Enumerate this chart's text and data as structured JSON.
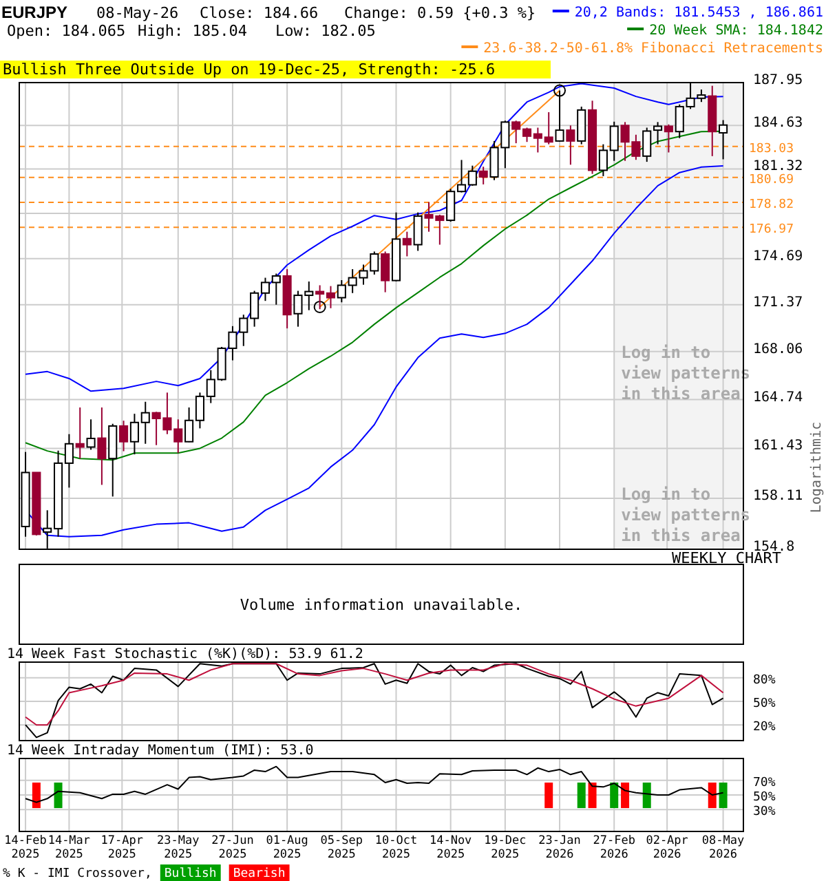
{
  "chart_data": [
    {
      "type": "candlestick",
      "title": "EURJPY",
      "subtitle": "Bullish Three Outside Up on 19-Dec-25, Strength: -25.6",
      "ylabel": "Logarithmic",
      "annotations": [
        "08-May-26",
        "Close: 184.66",
        "Change: 0.59 {+0.3 %}",
        "Open: 184.065",
        "High: 185.04",
        "Low: 182.05",
        "Log in to view patterns in this area",
        "WEEKLY CHART"
      ],
      "colors": [
        "#ffffff",
        "#990033",
        "#ffffff",
        "#ffffff",
        "#ffffff",
        "#990033",
        "#ffffff",
        "#990033",
        "#ffffff",
        "#990033",
        "#ffffff",
        "#ffffff",
        "#990033",
        "#990033",
        "#990033",
        "#ffffff",
        "#ffffff",
        "#ffffff",
        "#ffffff",
        "#ffffff",
        "#ffffff",
        "#ffffff",
        "#ffffff",
        "#ffffff",
        "#990033",
        "#ffffff",
        "#ffffff",
        "#990033",
        "#990033",
        "#ffffff",
        "#ffffff",
        "#ffffff",
        "#ffffff",
        "#990033",
        "#ffffff",
        "#990033",
        "#ffffff",
        "#990033",
        "#990033",
        "#ffffff",
        "#ffffff",
        "#ffffff",
        "#990033",
        "#ffffff",
        "#ffffff",
        "#990033",
        "#990033",
        "#990033",
        "#990033",
        "#ffffff",
        "#990033",
        "#ffffff",
        "#990033",
        "#ffffff",
        "#ffffff",
        "#990033",
        "#990033",
        "#ffffff",
        "#ffffff",
        "#990033",
        "#ffffff",
        "#ffffff",
        "#ffffff",
        "#990033",
        "#ffffff"
      ],
      "log": true,
      "grid": true,
      "legend": "top right",
      "tick_labels": "y",
      "xlim": [
        "2025-02-10",
        "2026-05-21"
      ],
      "ylim": [
        154.8,
        187.95
      ],
      "yticks": [
        154.8,
        158.11,
        161.43,
        164.74,
        168.06,
        171.37,
        174.69,
        {
          "value": 178,
          "label": null
        },
        181.32,
        184.63,
        187.95
      ],
      "xticks": [
        {
          "value": "2025-02-14",
          "label": null
        },
        {
          "value": "2025-03-14",
          "label": null
        },
        {
          "value": "2025-04-17",
          "label": null
        },
        {
          "value": "2025-05-23",
          "label": null
        },
        {
          "value": "2025-06-27",
          "label": null
        },
        {
          "value": "2025-08-01",
          "label": null
        },
        {
          "value": "2025-09-05",
          "label": null
        },
        {
          "value": "2025-10-10",
          "label": null
        },
        {
          "value": "2025-11-14",
          "label": null
        },
        {
          "value": "2025-12-19",
          "label": null
        },
        {
          "value": "2026-01-23",
          "label": null
        },
        {
          "value": "2026-02-27",
          "label": null
        },
        {
          "value": "2026-04-02",
          "label": null
        },
        {
          "value": "2026-05-08",
          "label": null
        }
      ],
      "x": [
        "2025-02-14",
        "2025-02-21",
        "2025-02-28",
        "2025-03-07",
        "2025-03-14",
        "2025-03-21",
        "2025-03-28",
        "2025-04-04",
        "2025-04-11",
        "2025-04-18",
        "2025-04-25",
        "2025-05-02",
        "2025-05-09",
        "2025-05-16",
        "2025-05-23",
        "2025-05-30",
        "2025-06-06",
        "2025-06-13",
        "2025-06-20",
        "2025-06-27",
        "2025-07-04",
        "2025-07-11",
        "2025-07-18",
        "2025-07-25",
        "2025-08-01",
        "2025-08-08",
        "2025-08-15",
        "2025-08-22",
        "2025-08-29",
        "2025-09-05",
        "2025-09-12",
        "2025-09-19",
        "2025-09-26",
        "2025-10-03",
        "2025-10-10",
        "2025-10-17",
        "2025-10-24",
        "2025-10-31",
        "2025-11-07",
        "2025-11-14",
        "2025-11-21",
        "2025-11-28",
        "2025-12-05",
        "2025-12-12",
        "2025-12-19",
        "2025-12-26",
        "2026-01-02",
        "2026-01-09",
        "2026-01-16",
        "2026-01-23",
        "2026-01-30",
        "2026-02-06",
        "2026-02-13",
        "2026-02-20",
        "2026-02-27",
        "2026-03-06",
        "2026-03-13",
        "2026-03-20",
        "2026-03-27",
        "2026-04-03",
        "2026-04-10",
        "2026-04-17",
        "2026-04-24",
        "2026-05-01",
        "2026-05-08"
      ],
      "ohlc": [
        [
          156.27,
          161.19,
          155.61,
          159.82
        ],
        [
          159.82,
          159.82,
          155.69,
          155.76
        ],
        [
          155.91,
          157.33,
          154.85,
          156.15
        ],
        [
          156.13,
          161.28,
          155.61,
          160.44
        ],
        [
          160.44,
          162.39,
          158.82,
          161.74
        ],
        [
          161.74,
          164.2,
          160.75,
          161.52
        ],
        [
          161.52,
          163.39,
          161.34,
          162.1
        ],
        [
          162.12,
          164.2,
          159.0,
          160.75
        ],
        [
          160.75,
          163.09,
          158.23,
          162.94
        ],
        [
          162.94,
          163.3,
          161.24,
          161.88
        ],
        [
          161.88,
          163.77,
          161.03,
          163.18
        ],
        [
          163.18,
          164.59,
          161.74,
          163.84
        ],
        [
          163.84,
          163.9,
          161.65,
          163.45
        ],
        [
          163.48,
          165.22,
          162.39,
          162.69
        ],
        [
          162.73,
          163.39,
          161.12,
          161.88
        ],
        [
          161.88,
          164.2,
          161.85,
          163.32
        ],
        [
          163.32,
          165.22,
          162.78,
          164.96
        ],
        [
          164.96,
          166.77,
          164.5,
          166.12
        ],
        [
          166.12,
          168.39,
          166.03,
          168.29
        ],
        [
          168.29,
          169.85,
          167.45,
          169.42
        ],
        [
          169.42,
          170.66,
          168.45,
          170.4
        ],
        [
          170.4,
          172.36,
          169.81,
          172.2
        ],
        [
          172.2,
          173.3,
          171.64,
          172.96
        ],
        [
          172.96,
          173.6,
          171.37,
          173.43
        ],
        [
          173.43,
          173.92,
          169.69,
          170.66
        ],
        [
          170.73,
          172.36,
          169.81,
          172.04
        ],
        [
          172.04,
          173.03,
          170.98,
          172.31
        ],
        [
          172.31,
          172.76,
          171.05,
          172.14
        ],
        [
          172.2,
          172.7,
          171.12,
          171.87
        ],
        [
          171.87,
          173.13,
          171.54,
          172.76
        ],
        [
          172.76,
          173.92,
          172.2,
          173.3
        ],
        [
          173.3,
          174.25,
          172.8,
          173.8
        ],
        [
          173.8,
          175.2,
          173.53,
          175.02
        ],
        [
          175.02,
          175.2,
          172.26,
          173.1
        ],
        [
          173.1,
          178.07,
          173.05,
          176.11
        ],
        [
          176.14,
          176.65,
          174.85,
          175.7
        ],
        [
          175.7,
          178.07,
          175.25,
          177.8
        ],
        [
          177.9,
          178.83,
          176.65,
          177.66
        ],
        [
          177.8,
          177.9,
          175.7,
          177.49
        ],
        [
          177.49,
          179.83,
          177.39,
          179.63
        ],
        [
          179.63,
          182.0,
          179.56,
          180.13
        ],
        [
          180.13,
          181.57,
          180.06,
          181.15
        ],
        [
          181.15,
          181.49,
          180.16,
          180.72
        ],
        [
          180.72,
          183.44,
          180.48,
          182.94
        ],
        [
          182.94,
          185.0,
          181.38,
          184.89
        ],
        [
          184.89,
          185.0,
          183.27,
          184.35
        ],
        [
          184.35,
          184.46,
          183.37,
          183.81
        ],
        [
          183.98,
          184.46,
          182.57,
          183.66
        ],
        [
          183.73,
          185.65,
          183.19,
          183.37
        ],
        [
          183.44,
          187.33,
          183.4,
          184.27
        ],
        [
          184.27,
          184.63,
          181.64,
          183.44
        ],
        [
          183.44,
          186.08,
          183.19,
          185.82
        ],
        [
          185.82,
          186.54,
          180.95,
          181.22
        ],
        [
          181.22,
          183.19,
          180.78,
          182.73
        ],
        [
          182.73,
          184.92,
          181.93,
          184.57
        ],
        [
          184.63,
          184.89,
          181.93,
          183.37
        ],
        [
          183.37,
          183.92,
          182.01,
          182.29
        ],
        [
          182.29,
          184.46,
          181.86,
          184.2
        ],
        [
          184.27,
          184.89,
          183.19,
          184.57
        ],
        [
          184.57,
          184.71,
          182.57,
          184.16
        ],
        [
          184.16,
          186.25,
          183.66,
          186.08
        ],
        [
          186.08,
          187.9,
          185.9,
          186.73
        ],
        [
          186.73,
          187.41,
          186.44,
          186.98
        ],
        [
          186.9,
          187.7,
          182.29,
          184.16
        ],
        [
          184.065,
          185.04,
          182.05,
          184.66
        ]
      ],
      "series": [
        {
          "type": "line",
          "name": "20,2 Bands: 181.5453 , 186.861",
          "color": "#0000ff",
          "x": [
            "2025-02-14",
            "2025-02-28",
            "2025-03-14",
            "2025-03-28",
            "2025-04-18",
            "2025-05-09",
            "2025-05-23",
            "2025-06-06",
            "2025-06-20",
            "2025-07-04",
            "2025-07-18",
            "2025-08-01",
            "2025-08-15",
            "2025-08-29",
            "2025-09-12",
            "2025-09-26",
            "2025-10-10",
            "2025-10-24",
            "2025-11-07",
            "2025-11-21",
            "2025-12-05",
            "2025-12-19",
            "2026-01-02",
            "2026-01-16",
            "2026-01-23",
            "2026-02-06",
            "2026-02-27",
            "2026-03-13",
            "2026-03-27",
            "2026-04-03",
            "2026-04-10",
            "2026-04-24",
            "2026-05-08"
          ],
          "values": [
            166.48,
            166.67,
            166.19,
            165.32,
            165.51,
            165.99,
            165.7,
            166.19,
            167.64,
            169.98,
            172.53,
            174.22,
            175.32,
            176.34,
            177.05,
            177.84,
            177.56,
            177.97,
            178.22,
            178.96,
            181.89,
            184.7,
            186.44,
            187.19,
            187.63,
            187.87,
            187.52,
            186.87,
            186.44,
            186.25,
            186.44,
            186.82,
            186.86
          ]
        },
        {
          "type": "line",
          "name": "20 Week SMA: 184.1842",
          "color": "#008000",
          "x": [
            "2025-02-14",
            "2025-02-28",
            "2025-03-21",
            "2025-04-11",
            "2025-04-25",
            "2025-05-23",
            "2025-06-06",
            "2025-06-20",
            "2025-07-04",
            "2025-07-18",
            "2025-08-01",
            "2025-08-15",
            "2025-08-29",
            "2025-09-12",
            "2025-09-26",
            "2025-10-10",
            "2025-10-24",
            "2025-11-07",
            "2025-11-21",
            "2025-12-05",
            "2025-12-19",
            "2026-01-02",
            "2026-01-16",
            "2026-01-30",
            "2026-02-13",
            "2026-02-27",
            "2026-03-13",
            "2026-03-27",
            "2026-04-10",
            "2026-04-24",
            "2026-05-08"
          ],
          "values": [
            161.81,
            161.26,
            160.75,
            160.66,
            161.12,
            161.12,
            161.43,
            162.12,
            163.21,
            165.03,
            165.9,
            166.87,
            167.74,
            168.71,
            169.98,
            171.15,
            172.23,
            173.33,
            174.32,
            175.63,
            176.85,
            177.87,
            179.06,
            179.91,
            180.75,
            181.62,
            182.65,
            183.41,
            183.79,
            184.16,
            184.18
          ]
        },
        {
          "type": "line",
          "color": "#0000ff",
          "x": [
            "2025-02-14",
            "2025-02-28",
            "2025-03-14",
            "2025-04-04",
            "2025-04-18",
            "2025-05-09",
            "2025-05-30",
            "2025-06-20",
            "2025-07-04",
            "2025-07-18",
            "2025-08-01",
            "2025-08-15",
            "2025-08-29",
            "2025-09-12",
            "2025-09-26",
            "2025-10-10",
            "2025-10-24",
            "2025-11-07",
            "2025-11-21",
            "2025-12-05",
            "2025-12-19",
            "2026-01-02",
            "2026-01-16",
            "2026-01-30",
            "2026-02-13",
            "2026-02-27",
            "2026-03-13",
            "2026-03-27",
            "2026-04-10",
            "2026-04-24",
            "2026-05-08"
          ],
          "values": [
            157.33,
            155.7,
            155.61,
            155.7,
            156.06,
            156.42,
            156.51,
            155.97,
            156.24,
            157.33,
            158.05,
            158.79,
            160.19,
            161.31,
            163.03,
            165.61,
            167.64,
            169.0,
            169.3,
            169.05,
            169.34,
            169.98,
            171.15,
            172.83,
            174.52,
            176.54,
            178.37,
            180.06,
            181.05,
            181.46,
            181.55
          ]
        },
        {
          "type": "line",
          "name": "23.6-38.2-50-61.8% Fibonacci Retracements",
          "color": "#ff8c1a",
          "marker": "circle",
          "x": [
            "2025-08-22",
            "2026-01-23"
          ],
          "values": [
            171.21,
            187.33
          ]
        }
      ],
      "ref_lines": [
        {
          "axis": "y",
          "value": 183.03,
          "label": "183.03",
          "color": "#ff8c1a",
          "line_style": "dashed"
        },
        {
          "axis": "y",
          "value": 180.69,
          "label": "180.69",
          "color": "#ff8c1a",
          "line_style": "dashed"
        },
        {
          "axis": "y",
          "value": 178.82,
          "label": "178.82",
          "color": "#ff8c1a",
          "line_style": "dashed"
        },
        {
          "axis": "y",
          "value": 176.97,
          "label": "176.97",
          "color": "#ff8c1a",
          "line_style": "dashed"
        }
      ],
      "bands": [
        {
          "axis": "x",
          "from": "2026-02-27",
          "to": "2026-05-21",
          "label": "Log in to view patterns in this area",
          "color": "#f3f3f3"
        }
      ]
    },
    {
      "type": "other",
      "annotations": [
        "Volume information unavailable."
      ]
    },
    {
      "type": "line",
      "title": "14 Week Fast Stochastic (%K)(%D): 53.9 61.2",
      "grid": true,
      "tick_labels": "y",
      "xlim": [
        "2025-02-10",
        "2026-05-21"
      ],
      "ylim": [
        0,
        100
      ],
      "yticks": [
        {
          "value": 20,
          "label": "20%"
        },
        {
          "value": 50,
          "label": "50%"
        },
        {
          "value": 80,
          "label": "80%"
        }
      ],
      "xticks": [
        {
          "value": "2025-02-14",
          "label": null
        },
        {
          "value": "2025-03-14",
          "label": null
        },
        {
          "value": "2025-04-17",
          "label": null
        },
        {
          "value": "2025-05-23",
          "label": null
        },
        {
          "value": "2025-06-27",
          "label": null
        },
        {
          "value": "2025-08-01",
          "label": null
        },
        {
          "value": "2025-09-05",
          "label": null
        },
        {
          "value": "2025-10-10",
          "label": null
        },
        {
          "value": "2025-11-14",
          "label": null
        },
        {
          "value": "2025-12-19",
          "label": null
        },
        {
          "value": "2026-01-23",
          "label": null
        },
        {
          "value": "2026-02-27",
          "label": null
        },
        {
          "value": "2026-04-02",
          "label": null
        },
        {
          "value": "2026-05-08",
          "label": null
        }
      ],
      "series": [
        {
          "type": "line",
          "color": "#000000",
          "x": [
            "2025-02-14",
            "2025-02-21",
            "2025-02-28",
            "2025-03-07",
            "2025-03-14",
            "2025-03-21",
            "2025-03-28",
            "2025-04-04",
            "2025-04-11",
            "2025-04-18",
            "2025-04-25",
            "2025-05-09",
            "2025-05-23",
            "2025-06-06",
            "2025-06-20",
            "2025-06-27",
            "2025-07-25",
            "2025-08-01",
            "2025-08-08",
            "2025-08-22",
            "2025-09-05",
            "2025-09-19",
            "2025-09-26",
            "2025-10-03",
            "2025-10-10",
            "2025-10-17",
            "2025-10-24",
            "2025-10-31",
            "2025-11-07",
            "2025-11-14",
            "2025-11-21",
            "2025-11-28",
            "2025-12-05",
            "2025-12-12",
            "2025-12-26",
            "2026-01-02",
            "2026-01-16",
            "2026-01-23",
            "2026-01-30",
            "2026-02-06",
            "2026-02-13",
            "2026-02-27",
            "2026-03-06",
            "2026-03-13",
            "2026-03-20",
            "2026-03-27",
            "2026-04-03",
            "2026-04-10",
            "2026-04-24",
            "2026-05-01",
            "2026-05-08"
          ],
          "values": [
            20,
            4,
            10,
            51,
            68,
            66,
            72,
            61,
            82,
            77,
            92,
            90,
            69,
            98,
            95,
            98,
            98,
            77,
            86,
            85,
            92,
            93,
            98,
            72,
            77,
            73,
            98,
            88,
            85,
            96,
            83,
            93,
            88,
            96,
            98,
            92,
            82,
            79,
            72,
            88,
            42,
            62,
            51,
            30,
            54,
            61,
            57,
            85,
            83,
            46,
            54
          ]
        },
        {
          "type": "line",
          "color": "#c0103c",
          "x": [
            "2025-02-14",
            "2025-02-21",
            "2025-02-28",
            "2025-03-07",
            "2025-03-14",
            "2025-03-28",
            "2025-04-04",
            "2025-04-18",
            "2025-04-25",
            "2025-05-16",
            "2025-05-30",
            "2025-06-13",
            "2025-06-27",
            "2025-07-25",
            "2025-08-08",
            "2025-08-22",
            "2025-09-05",
            "2025-09-19",
            "2025-10-03",
            "2025-10-17",
            "2025-10-31",
            "2025-11-14",
            "2025-12-05",
            "2025-12-19",
            "2026-01-02",
            "2026-01-16",
            "2026-01-30",
            "2026-02-13",
            "2026-02-27",
            "2026-03-13",
            "2026-04-03",
            "2026-04-24",
            "2026-05-08"
          ],
          "values": [
            30,
            20,
            20,
            38,
            61,
            67,
            70,
            77,
            86,
            85,
            77,
            90,
            98,
            98,
            85,
            83,
            89,
            92,
            85,
            77,
            86,
            90,
            90,
            98,
            96,
            85,
            77,
            66,
            53,
            44,
            54,
            83,
            61
          ]
        }
      ]
    },
    {
      "type": "line",
      "title": "14 Week Intraday Momentum (IMI): 53.0",
      "grid": true,
      "legend": "bottom",
      "legend_title": "% K - IMI Crossover,",
      "xlim": [
        "2025-02-10",
        "2026-05-21"
      ],
      "ylim": [
        0,
        100
      ],
      "yticks": [
        {
          "value": 30,
          "label": "30%"
        },
        {
          "value": 50,
          "label": "50%"
        },
        {
          "value": 70,
          "label": "70%"
        }
      ],
      "xticks": [
        {
          "value": "2025-02-14",
          "label": "14-Feb\n2025"
        },
        {
          "value": "2025-03-14",
          "label": "14-Mar\n2025"
        },
        {
          "value": "2025-04-17",
          "label": "17-Apr\n2025"
        },
        {
          "value": "2025-05-23",
          "label": "23-May\n2025"
        },
        {
          "value": "2025-06-27",
          "label": "27-Jun\n2025"
        },
        {
          "value": "2025-08-01",
          "label": "01-Aug\n2025"
        },
        {
          "value": "2025-09-05",
          "label": "05-Sep\n2025"
        },
        {
          "value": "2025-10-10",
          "label": "10-Oct\n2025"
        },
        {
          "value": "2025-11-14",
          "label": "14-Nov\n2025"
        },
        {
          "value": "2025-12-19",
          "label": "19-Dec\n2025"
        },
        {
          "value": "2026-01-23",
          "label": "23-Jan\n2026"
        },
        {
          "value": "2026-02-27",
          "label": "27-Feb\n2026"
        },
        {
          "value": "2026-04-02",
          "label": "02-Apr\n2026"
        },
        {
          "value": "2026-05-08",
          "label": "08-May\n2026"
        }
      ],
      "series": [
        {
          "type": "bar",
          "name": "Bullish",
          "color": "#00a000",
          "x": [
            "2025-03-07",
            "2026-02-06",
            "2026-02-27",
            "2026-03-20",
            "2026-05-08"
          ],
          "base": [
            32,
            32,
            32,
            32,
            32
          ],
          "values": [
            35,
            35,
            35,
            35,
            35
          ]
        },
        {
          "type": "bar",
          "name": "Bearish",
          "color": "#ff0000",
          "x": [
            "2025-02-21",
            "2026-01-16",
            "2026-02-13",
            "2026-03-06",
            "2026-05-01"
          ],
          "base": [
            32,
            32,
            32,
            32,
            32
          ],
          "values": [
            35,
            35,
            35,
            35,
            35
          ]
        },
        {
          "type": "line",
          "color": "#000000",
          "x": [
            "2025-02-14",
            "2025-02-21",
            "2025-02-28",
            "2025-03-07",
            "2025-03-21",
            "2025-04-04",
            "2025-04-11",
            "2025-04-18",
            "2025-04-25",
            "2025-05-02",
            "2025-05-16",
            "2025-05-23",
            "2025-05-30",
            "2025-06-06",
            "2025-06-13",
            "2025-06-27",
            "2025-07-04",
            "2025-07-11",
            "2025-07-18",
            "2025-07-25",
            "2025-08-01",
            "2025-08-08",
            "2025-08-29",
            "2025-09-12",
            "2025-09-26",
            "2025-10-03",
            "2025-10-10",
            "2025-10-17",
            "2025-10-24",
            "2025-10-31",
            "2025-11-07",
            "2025-11-21",
            "2025-11-28",
            "2025-12-12",
            "2025-12-26",
            "2026-01-02",
            "2026-01-09",
            "2026-01-16",
            "2026-01-23",
            "2026-01-30",
            "2026-02-06",
            "2026-02-13",
            "2026-02-20",
            "2026-02-27",
            "2026-03-06",
            "2026-03-13",
            "2026-03-27",
            "2026-04-03",
            "2026-04-10",
            "2026-04-24",
            "2026-05-01",
            "2026-05-08"
          ],
          "values": [
            45,
            40,
            45,
            55,
            53,
            45,
            51,
            51,
            55,
            51,
            64,
            58,
            74,
            75,
            71,
            74,
            76,
            84,
            82,
            89,
            74,
            74,
            82,
            82,
            78,
            67,
            71,
            66,
            67,
            66,
            79,
            78,
            83,
            84,
            84,
            78,
            87,
            82,
            85,
            78,
            82,
            62,
            61,
            66,
            56,
            53,
            50,
            50,
            57,
            60,
            50,
            53
          ]
        }
      ]
    }
  ]
}
